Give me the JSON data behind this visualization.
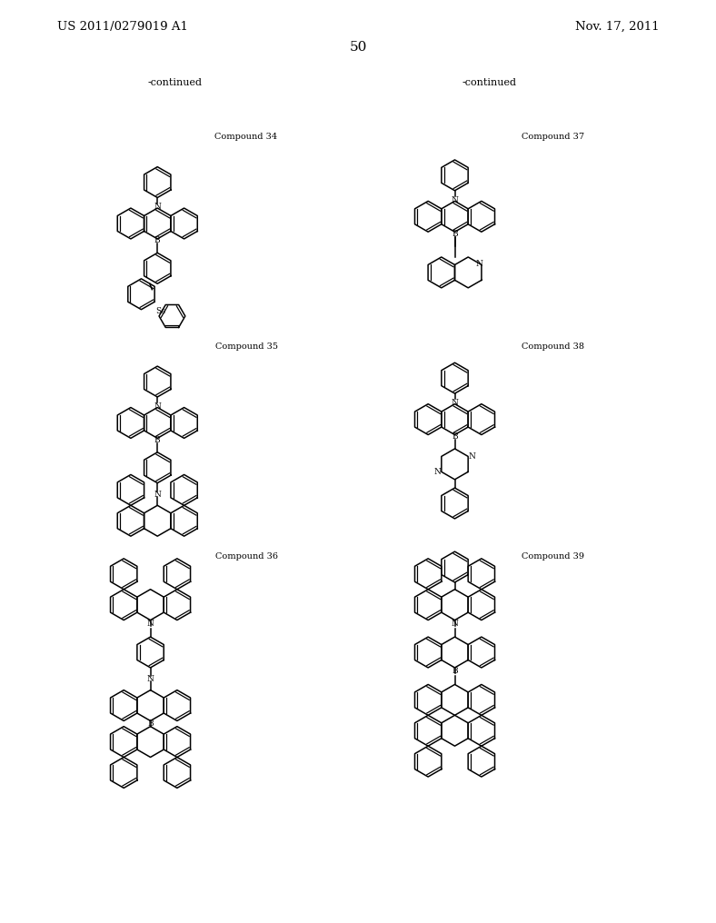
{
  "background_color": "#ffffff",
  "header_left": "US 2011/0279019 A1",
  "header_right": "Nov. 17, 2011",
  "page_number": "50",
  "continued_left": "-continued",
  "continued_right": "-continued",
  "c34_label": "Compound 34",
  "c35_label": "Compound 35",
  "c36_label": "Compound 36",
  "c37_label": "Compound 37",
  "c38_label": "Compound 38",
  "c39_label": "Compound 39"
}
